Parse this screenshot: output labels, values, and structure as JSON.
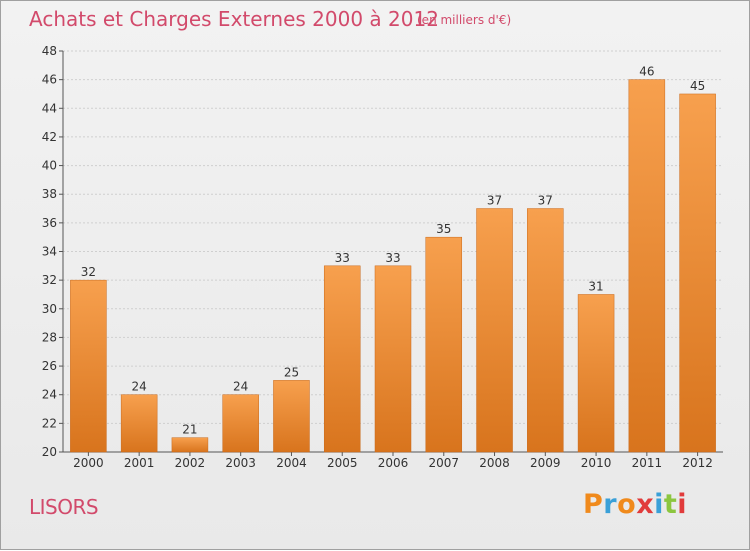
{
  "header": {
    "title": "Achats et Charges Externes 2000 à 2012",
    "unit_note": "(en milliers d'€)"
  },
  "footer": {
    "place_name": "LISORS",
    "logo_text": "Proxiti",
    "logo_colors": [
      "#f08a1c",
      "#3aa0d8",
      "#f08a1c",
      "#e13b3b",
      "#3aa0d8",
      "#8cc63f",
      "#e13b3b"
    ]
  },
  "colors": {
    "bar_top": "#f7a04e",
    "bar_bottom": "#d8741d",
    "bar_edge": "#c9691a",
    "title": "#d24a6b",
    "axis": "#555555",
    "grid": "#cfcfcf"
  },
  "chart_data": {
    "type": "bar",
    "title": "Achats et Charges Externes 2000 à 2012",
    "subtitle": "(en milliers d'€)",
    "xlabel": "",
    "ylabel": "",
    "categories": [
      "2000",
      "2001",
      "2002",
      "2003",
      "2004",
      "2005",
      "2006",
      "2007",
      "2008",
      "2009",
      "2010",
      "2011",
      "2012"
    ],
    "values": [
      32,
      24,
      21,
      24,
      25,
      33,
      33,
      35,
      37,
      37,
      31,
      46,
      45
    ],
    "ylim": [
      20,
      48
    ],
    "yticks": [
      20,
      22,
      24,
      26,
      28,
      30,
      32,
      34,
      36,
      38,
      40,
      42,
      44,
      46,
      48
    ],
    "grid": true,
    "data_labels": true
  }
}
